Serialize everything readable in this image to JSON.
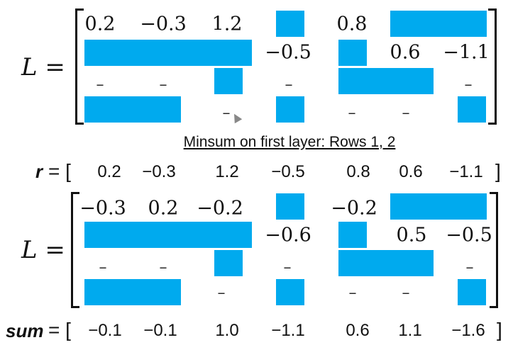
{
  "matrix1": {
    "label": "L =",
    "row1": [
      "0.2",
      "−0.3",
      "1.2",
      "0.8"
    ],
    "row2": [
      "−0.5",
      "0.6",
      "−1.1"
    ],
    "row3_dashes": [
      "–",
      "–",
      "–",
      "–"
    ],
    "row4_dashes": [
      "–",
      "–",
      "–"
    ]
  },
  "caption": "Minsum on first layer: Rows 1, 2",
  "r_vector": {
    "label": "r",
    "equals": "= [",
    "close": "]",
    "values": [
      "0.2",
      "−0.3",
      "1.2",
      "−0.5",
      "0.8",
      "0.6",
      "−1.1"
    ]
  },
  "matrix2": {
    "label": "L =",
    "row1": [
      "−0.3",
      "0.2",
      "−0.2",
      "−0.2"
    ],
    "row2": [
      "−0.6",
      "0.5",
      "−0.5"
    ],
    "row3_dashes": [
      "–",
      "–",
      "–",
      "–"
    ],
    "row4_dashes": [
      "–",
      "–",
      "–"
    ]
  },
  "sum_vector": {
    "label": "sum",
    "equals": "= [",
    "close": "]",
    "values": [
      "−0.1",
      "−0.1",
      "1.0",
      "−1.1",
      "0.6",
      "1.1",
      "−1.6"
    ]
  },
  "colors": {
    "block": "#00aaee",
    "text": "#111111"
  }
}
